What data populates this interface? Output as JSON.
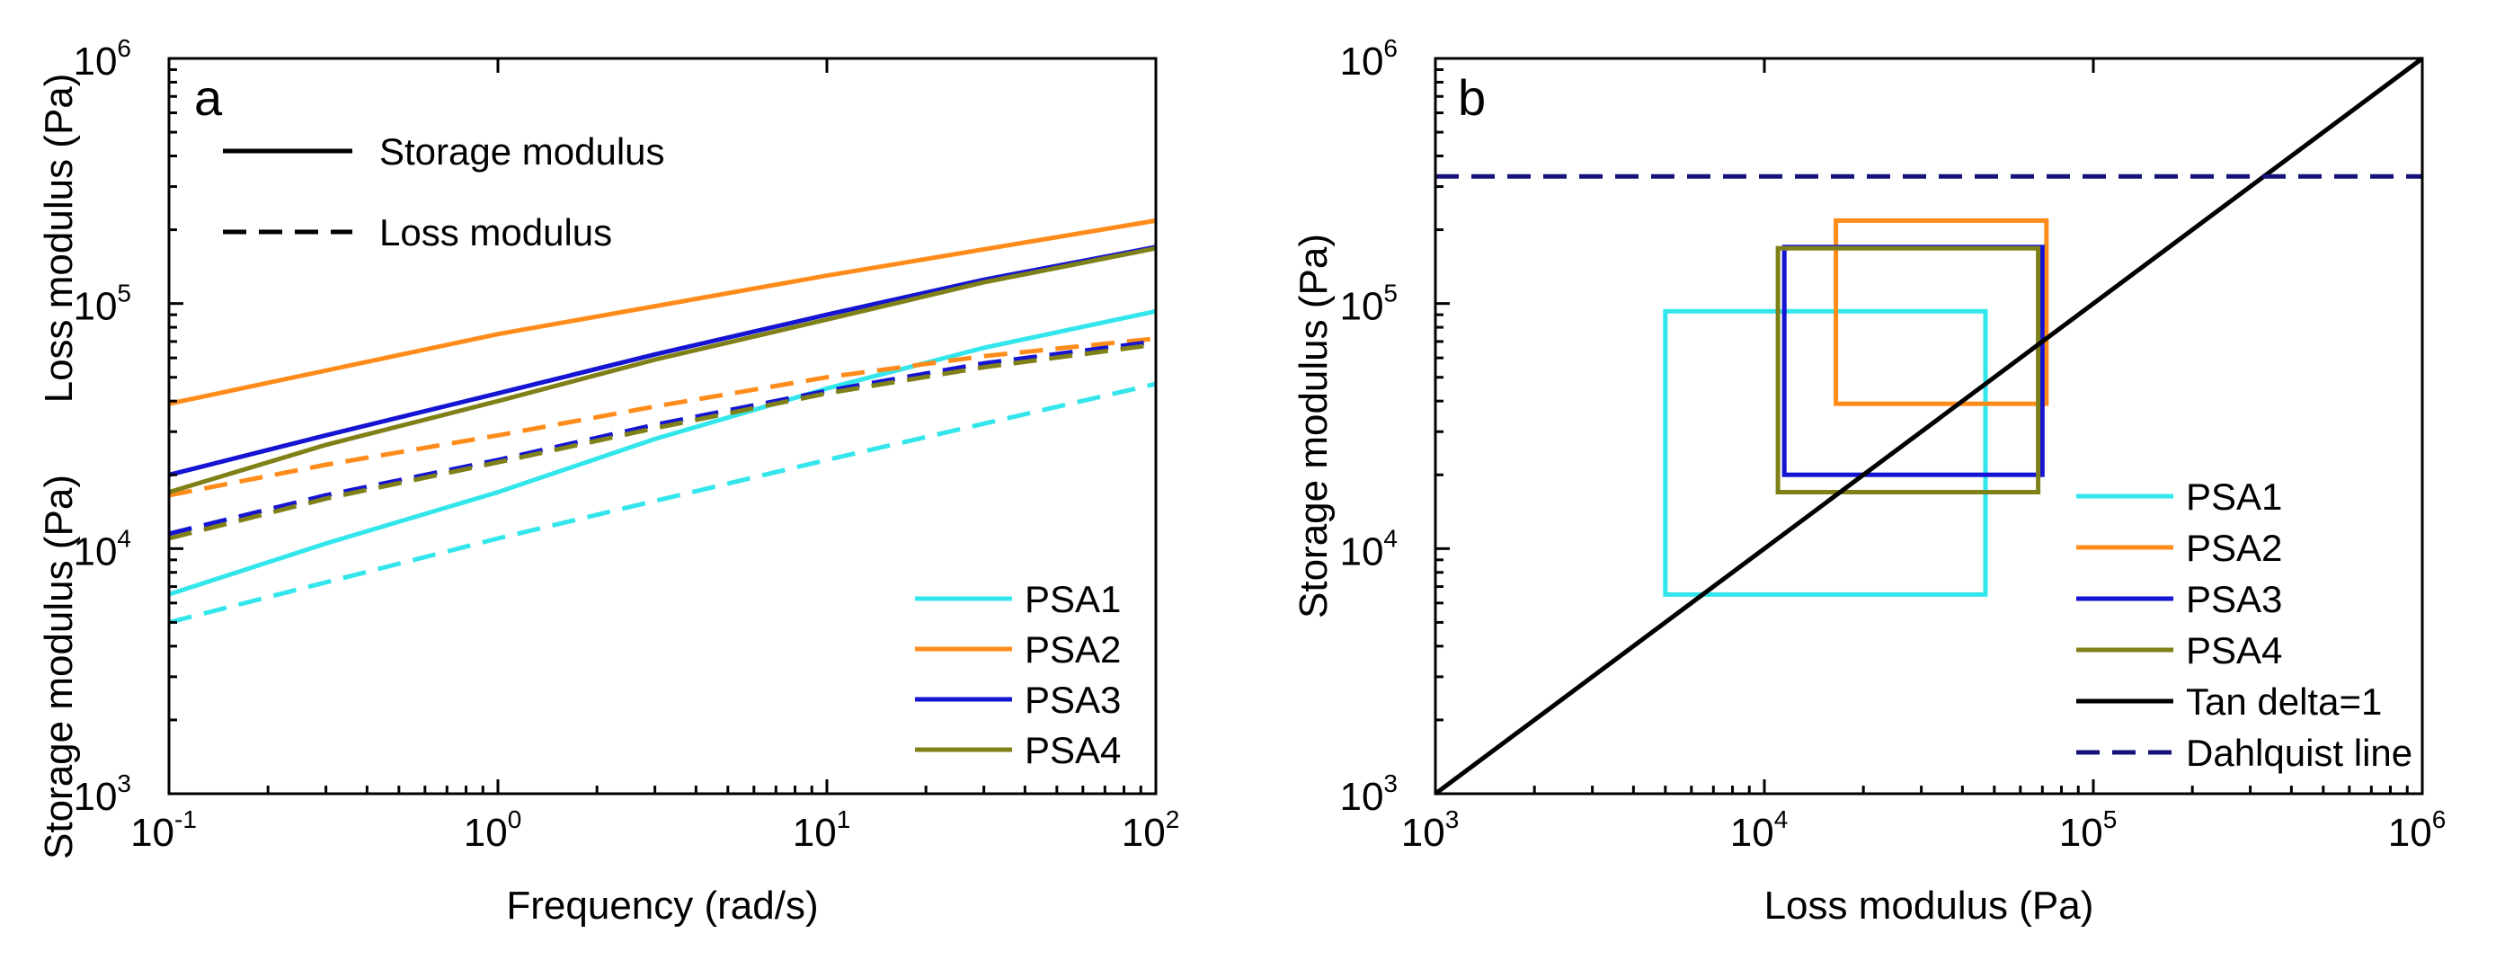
{
  "chart_data": [
    {
      "type": "line",
      "panel_label": "a",
      "xlabel": "Frequency (rad/s)",
      "ylabel_lower": "Storage modulus (Pa)",
      "ylabel_upper": "Loss modulus (Pa)",
      "xscale": "log",
      "yscale": "log",
      "xlim": [
        0.1,
        100
      ],
      "ylim": [
        1000,
        1000000
      ],
      "x_ticks": [
        {
          "base": "10",
          "exp": "-1"
        },
        {
          "base": "10",
          "exp": "0"
        },
        {
          "base": "10",
          "exp": "1"
        },
        {
          "base": "10",
          "exp": "2"
        }
      ],
      "y_ticks": [
        {
          "base": "10",
          "exp": "3"
        },
        {
          "base": "10",
          "exp": "4"
        },
        {
          "base": "10",
          "exp": "5"
        },
        {
          "base": "10",
          "exp": "6"
        }
      ],
      "style_legend": [
        {
          "label": "Storage modulus",
          "dash": "solid"
        },
        {
          "label": "Loss modulus",
          "dash": "dashed"
        }
      ],
      "legend_position": "bottom-right",
      "series": [
        {
          "name": "PSA1",
          "color": "#33e6ec",
          "storage": [
            [
              0.1,
              6500
            ],
            [
              0.3,
              10500
            ],
            [
              1,
              17000
            ],
            [
              3,
              28000
            ],
            [
              10,
              45000
            ],
            [
              30,
              66000
            ],
            [
              100,
              93000
            ]
          ],
          "loss": [
            [
              0.1,
              5000
            ],
            [
              1,
              11000
            ],
            [
              10,
              23000
            ],
            [
              100,
              47000
            ]
          ]
        },
        {
          "name": "PSA2",
          "color": "#ff8c1a",
          "storage": [
            [
              0.1,
              39000
            ],
            [
              1,
              75000
            ],
            [
              10,
              130000
            ],
            [
              100,
              218000
            ]
          ],
          "loss": [
            [
              0.1,
              16500
            ],
            [
              0.3,
              22000
            ],
            [
              1,
              29000
            ],
            [
              3,
              38000
            ],
            [
              10,
              50000
            ],
            [
              30,
              61000
            ],
            [
              100,
              72000
            ]
          ]
        },
        {
          "name": "PSA3",
          "color": "#1414d2",
          "storage": [
            [
              0.1,
              20000
            ],
            [
              0.3,
              29000
            ],
            [
              1,
              43000
            ],
            [
              3,
              62000
            ],
            [
              10,
              90000
            ],
            [
              30,
              125000
            ],
            [
              100,
              170000
            ]
          ],
          "loss": [
            [
              0.1,
              11500
            ],
            [
              0.3,
              16500
            ],
            [
              1,
              23000
            ],
            [
              3,
              32000
            ],
            [
              10,
              44000
            ],
            [
              30,
              57000
            ],
            [
              100,
              70000
            ]
          ]
        },
        {
          "name": "PSA4",
          "color": "#808018",
          "storage": [
            [
              0.1,
              17000
            ],
            [
              0.3,
              26500
            ],
            [
              1,
              40000
            ],
            [
              3,
              59000
            ],
            [
              10,
              86000
            ],
            [
              30,
              122000
            ],
            [
              100,
              168000
            ]
          ],
          "loss": [
            [
              0.1,
              11000
            ],
            [
              0.3,
              16000
            ],
            [
              1,
              22500
            ],
            [
              3,
              31000
            ],
            [
              10,
              43000
            ],
            [
              30,
              55000
            ],
            [
              100,
              68000
            ]
          ]
        }
      ]
    },
    {
      "type": "line",
      "panel_label": "b",
      "xlabel": "Loss modulus (Pa)",
      "ylabel": "Storage modulus (Pa)",
      "xscale": "log",
      "yscale": "log",
      "xlim": [
        1000,
        1000000
      ],
      "ylim": [
        1000,
        1000000
      ],
      "x_ticks": [
        {
          "base": "10",
          "exp": "3"
        },
        {
          "base": "10",
          "exp": "4"
        },
        {
          "base": "10",
          "exp": "5"
        },
        {
          "base": "10",
          "exp": "6"
        }
      ],
      "y_ticks": [
        {
          "base": "10",
          "exp": "3"
        },
        {
          "base": "10",
          "exp": "4"
        },
        {
          "base": "10",
          "exp": "5"
        },
        {
          "base": "10",
          "exp": "6"
        }
      ],
      "legend_position": "bottom-right",
      "windows": [
        {
          "name": "PSA1",
          "color": "#33e6ec",
          "x": [
            5000,
            47000
          ],
          "y": [
            6500,
            93000
          ]
        },
        {
          "name": "PSA2",
          "color": "#ff8c1a",
          "x": [
            16500,
            72000
          ],
          "y": [
            39000,
            218000
          ]
        },
        {
          "name": "PSA3",
          "color": "#1414d2",
          "x": [
            11500,
            70000
          ],
          "y": [
            20000,
            170000
          ]
        },
        {
          "name": "PSA4",
          "color": "#808018",
          "x": [
            11000,
            68000
          ],
          "y": [
            17000,
            168000
          ]
        }
      ],
      "reference_lines": [
        {
          "name": "Tan delta=1",
          "color": "#000000",
          "dash": "solid",
          "points": [
            [
              1000,
              1000
            ],
            [
              1000000,
              1000000
            ]
          ]
        },
        {
          "name": "Dahlquist line",
          "color": "#141478",
          "dash": "dashed",
          "y": 330000
        }
      ]
    }
  ]
}
